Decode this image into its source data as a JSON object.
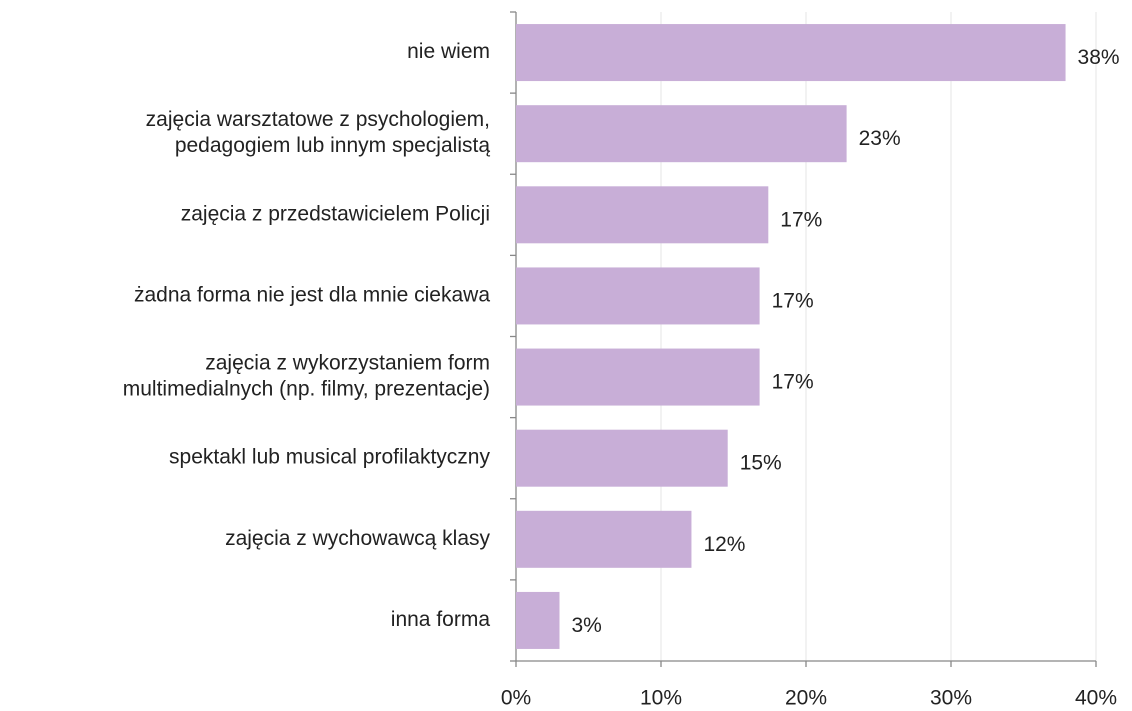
{
  "chart_data": {
    "type": "bar",
    "orientation": "horizontal",
    "categories": [
      [
        "nie wiem"
      ],
      [
        "zajęcia warsztatowe z psychologiem,",
        "pedagogiem lub innym specjalistą"
      ],
      [
        "zajęcia z przedstawicielem Policji"
      ],
      [
        "żadna forma nie jest dla mnie ciekawa"
      ],
      [
        "zajęcia z wykorzystaniem form",
        "multimedialnych (np. filmy, prezentacje)"
      ],
      [
        "spektakl lub musical profilaktyczny"
      ],
      [
        "zajęcia z wychowawcą klasy"
      ],
      [
        "inna forma"
      ]
    ],
    "values": [
      37.9,
      22.8,
      17.4,
      16.8,
      16.8,
      14.6,
      12.1,
      3.0
    ],
    "value_labels": [
      "38%",
      "23%",
      "17%",
      "17%",
      "17%",
      "15%",
      "12%",
      "3%"
    ],
    "color": "#c8aed7",
    "xlim": [
      0,
      40
    ],
    "xticks": [
      {
        "value": 0,
        "label": "0%"
      },
      {
        "value": 10,
        "label": "10%"
      },
      {
        "value": 20,
        "label": "20%"
      },
      {
        "value": 30,
        "label": "30%"
      },
      {
        "value": 40,
        "label": "40%"
      }
    ],
    "grid": true
  }
}
